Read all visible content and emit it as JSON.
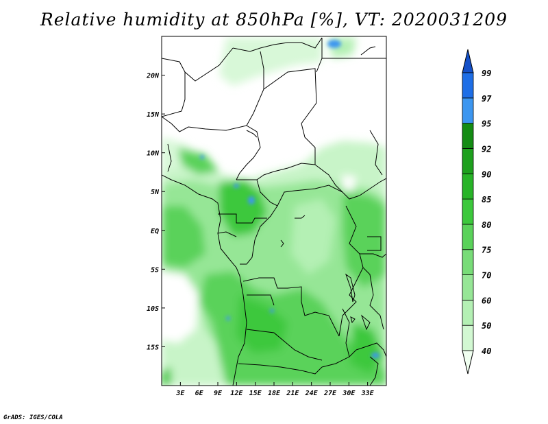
{
  "title": "Relative humidity at 850hPa [%], VT: 2020031209",
  "credit": "GrADS: IGES/COLA",
  "map": {
    "lon_range": [
      0,
      36
    ],
    "lat_range": [
      -20,
      25
    ],
    "lon_ticks": [
      {
        "value": 3,
        "label": "3E"
      },
      {
        "value": 6,
        "label": "6E"
      },
      {
        "value": 9,
        "label": "9E"
      },
      {
        "value": 12,
        "label": "12E"
      },
      {
        "value": 15,
        "label": "15E"
      },
      {
        "value": 18,
        "label": "18E"
      },
      {
        "value": 21,
        "label": "21E"
      },
      {
        "value": 24,
        "label": "24E"
      },
      {
        "value": 27,
        "label": "27E"
      },
      {
        "value": 30,
        "label": "30E"
      },
      {
        "value": 33,
        "label": "33E"
      }
    ],
    "lat_ticks": [
      {
        "value": 20,
        "label": "20N"
      },
      {
        "value": 15,
        "label": "15N"
      },
      {
        "value": 10,
        "label": "10N"
      },
      {
        "value": 5,
        "label": "5N"
      },
      {
        "value": 0,
        "label": "EQ"
      },
      {
        "value": -5,
        "label": "5S"
      },
      {
        "value": -10,
        "label": "10S"
      },
      {
        "value": -15,
        "label": "15S"
      }
    ]
  },
  "colorbar": {
    "levels": [
      "40",
      "50",
      "60",
      "70",
      "75",
      "80",
      "85",
      "90",
      "92",
      "95",
      "97",
      "99"
    ],
    "colors": [
      "#f0fff0",
      "#d2f8d2",
      "#b4f0b4",
      "#96e696",
      "#78dc78",
      "#5ad25a",
      "#3cc83c",
      "#28b428",
      "#1ea01e",
      "#148c14",
      "#3c96f0",
      "#1e6ee6",
      "#1450c8"
    ],
    "extend": "both"
  }
}
